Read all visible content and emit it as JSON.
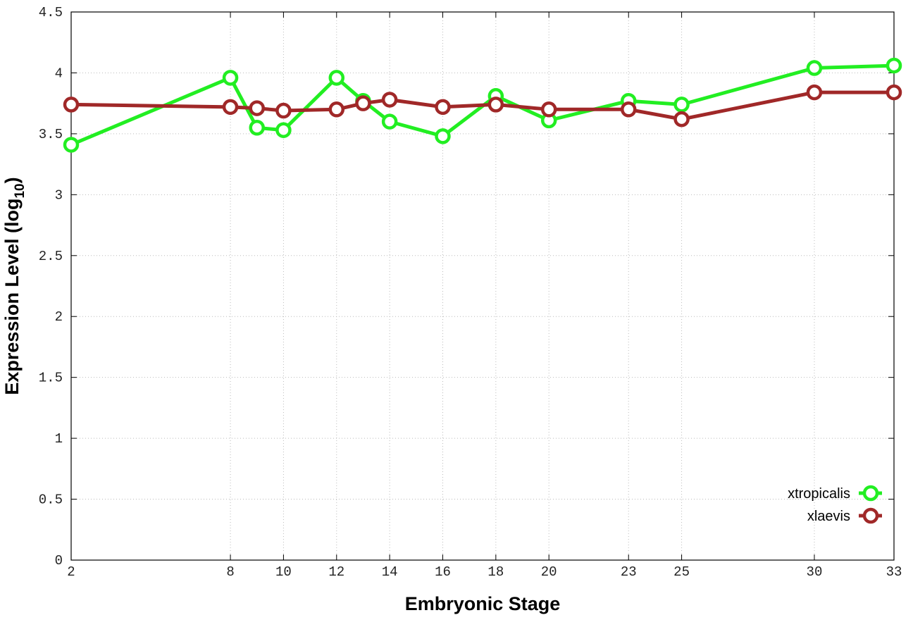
{
  "chart_data": {
    "type": "line",
    "x_label": "Embryonic Stage",
    "y_label": {
      "text": "Expression Level (log",
      "subscript": "10",
      "suffix": ")"
    },
    "x": [
      2,
      8,
      9,
      10,
      12,
      13,
      14,
      16,
      18,
      20,
      23,
      25,
      30,
      33
    ],
    "series": [
      {
        "name": "xtropicalis",
        "color": "#22ee22",
        "values": [
          3.41,
          3.96,
          3.55,
          3.53,
          3.96,
          3.77,
          3.6,
          3.48,
          3.81,
          3.61,
          3.77,
          3.74,
          4.04,
          4.06
        ]
      },
      {
        "name": "xlaevis",
        "color": "#a02828",
        "values": [
          3.74,
          3.72,
          3.71,
          3.69,
          3.7,
          3.75,
          3.78,
          3.72,
          3.74,
          3.7,
          3.7,
          3.62,
          3.84,
          3.84
        ]
      }
    ],
    "xlim": [
      2,
      33
    ],
    "xticks": [
      2,
      8,
      10,
      12,
      14,
      16,
      18,
      20,
      23,
      25,
      30,
      33
    ],
    "ylim": [
      0,
      4.5
    ],
    "yticks": [
      0,
      0.5,
      1,
      1.5,
      2,
      2.5,
      3,
      3.5,
      4,
      4.5
    ],
    "grid": true,
    "legend_position": "bottom right"
  }
}
